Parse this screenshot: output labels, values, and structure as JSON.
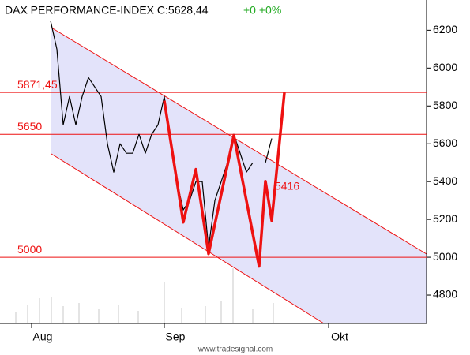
{
  "chart_data": {
    "type": "line",
    "title": "DAX PERFORMANCE-INDEX C:5628,44",
    "change": "+0 +0%",
    "watermark": "www.tradesignal.com",
    "annotation": "5416",
    "categories": [
      null,
      null,
      null,
      null,
      null,
      "Aug",
      null,
      null,
      null,
      null,
      null,
      null,
      null,
      null,
      null,
      null,
      null,
      null,
      null,
      null,
      null,
      null,
      null,
      null,
      null,
      null,
      "Sep",
      null,
      null,
      null,
      null,
      null,
      null,
      null,
      null,
      null,
      null,
      null,
      null,
      null,
      null,
      null,
      null,
      null,
      null,
      null,
      null,
      null,
      null,
      null,
      null,
      null,
      "Okt",
      null,
      null,
      null,
      null,
      null,
      null,
      null,
      null,
      null,
      null,
      null,
      null,
      null,
      null,
      null
    ],
    "series": [
      {
        "name": "DAX",
        "color": "#000000",
        "values": [
          null,
          null,
          null,
          null,
          null,
          null,
          null,
          null,
          6250,
          6100,
          5700,
          5850,
          5700,
          5850,
          5950,
          5900,
          5850,
          5600,
          5450,
          5600,
          5550,
          5550,
          5650,
          5550,
          5650,
          5700,
          5850,
          5600,
          5400,
          5250,
          5300,
          5400,
          5400,
          5050,
          5300,
          5400,
          5500,
          5650,
          5550,
          5450,
          5500,
          null,
          5500,
          5628,
          null,
          null,
          null,
          null,
          null,
          null,
          null,
          null,
          null,
          null,
          null,
          null,
          null,
          null,
          null,
          null,
          null,
          null,
          null,
          null,
          null,
          null,
          null,
          null
        ]
      },
      {
        "name": "W",
        "color": "#ee1111",
        "values": [
          null,
          null,
          null,
          null,
          null,
          null,
          null,
          null,
          null,
          null,
          null,
          null,
          null,
          null,
          null,
          null,
          null,
          null,
          null,
          null,
          null,
          null,
          null,
          null,
          null,
          null,
          5828,
          5614,
          5400,
          5185,
          5325,
          5465,
          5242,
          5018,
          5175,
          5332,
          5488,
          5645,
          5472,
          5298,
          5125,
          4952,
          5402,
          5194,
          5532,
          5870,
          null,
          null,
          null,
          null,
          null,
          null,
          null,
          null,
          null,
          null,
          null,
          null,
          null,
          null,
          null,
          null,
          null,
          null,
          null,
          null,
          null,
          null
        ]
      }
    ],
    "hlines": [
      {
        "value": 5871.45,
        "label": "5871,45"
      },
      5650,
      5000
    ],
    "ylim": [
      4650,
      6360
    ],
    "yticks": [
      4800,
      5000,
      5200,
      5400,
      5600,
      5800,
      6000,
      6200
    ]
  }
}
